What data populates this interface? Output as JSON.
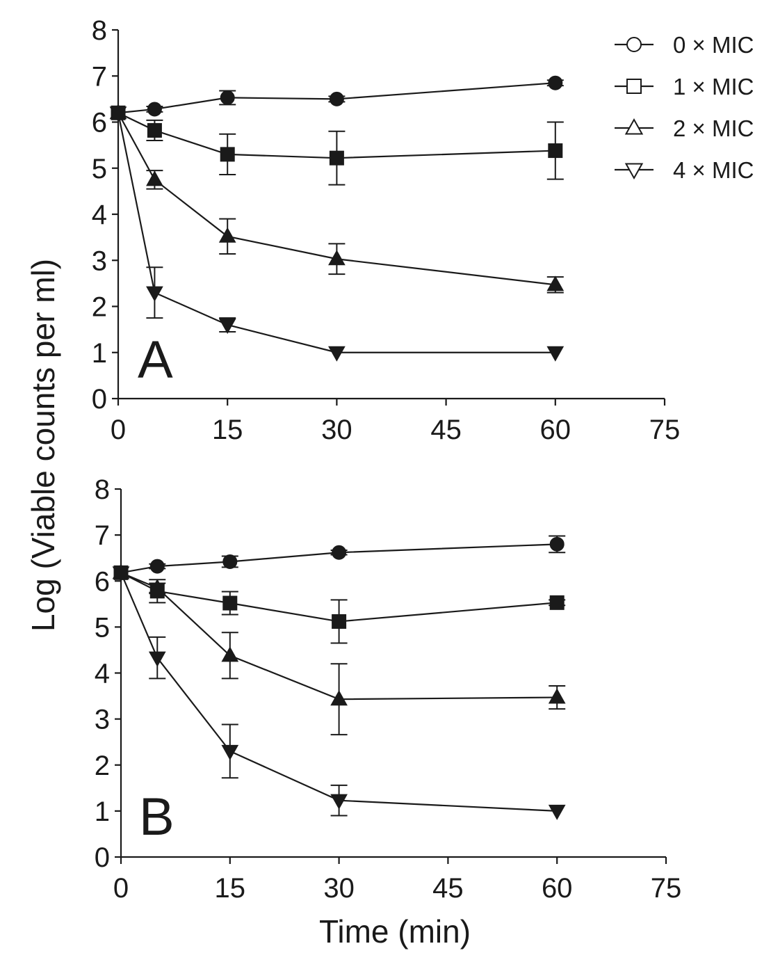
{
  "chart_data": [
    {
      "type": "line",
      "panel_label": "A",
      "x": [
        0,
        5,
        15,
        30,
        60
      ],
      "xlim": [
        0,
        75
      ],
      "xticks": [
        "0",
        "15",
        "30",
        "45",
        "60",
        "75"
      ],
      "ylim": [
        0,
        8
      ],
      "yticks": [
        "0",
        "1",
        "2",
        "3",
        "4",
        "5",
        "6",
        "7",
        "8"
      ],
      "xlabel": "",
      "ylabel": "Log (Viable counts per ml)",
      "series": [
        {
          "name": "0 × MIC",
          "marker": "circle",
          "values": [
            6.2,
            6.28,
            6.53,
            6.5,
            6.85
          ],
          "errors": [
            0,
            0.06,
            0.15,
            0.06,
            0.06
          ]
        },
        {
          "name": "1 × MIC",
          "marker": "square",
          "values": [
            6.2,
            5.82,
            5.3,
            5.22,
            5.38
          ],
          "errors": [
            0,
            0.22,
            0.44,
            0.58,
            0.62
          ]
        },
        {
          "name": "2 × MIC",
          "marker": "triangle-up",
          "values": [
            6.2,
            4.75,
            3.52,
            3.03,
            2.47
          ],
          "errors": [
            0,
            0.2,
            0.38,
            0.33,
            0.17
          ]
        },
        {
          "name": "4 × MIC",
          "marker": "triangle-down",
          "values": [
            6.2,
            2.3,
            1.6,
            1.0,
            1.0
          ],
          "errors": [
            0,
            0.55,
            0.15,
            0,
            0
          ]
        }
      ]
    },
    {
      "type": "line",
      "panel_label": "B",
      "x": [
        0,
        5,
        15,
        30,
        60
      ],
      "xlim": [
        0,
        75
      ],
      "xticks": [
        "0",
        "15",
        "30",
        "45",
        "60",
        "75"
      ],
      "ylim": [
        0,
        8
      ],
      "yticks": [
        "0",
        "1",
        "2",
        "3",
        "4",
        "5",
        "6",
        "7",
        "8"
      ],
      "xlabel": "Time (min)",
      "ylabel": "Log (Viable counts per ml)",
      "series": [
        {
          "name": "0 × MIC",
          "marker": "circle",
          "values": [
            6.18,
            6.32,
            6.42,
            6.62,
            6.8
          ],
          "errors": [
            0,
            0.05,
            0.12,
            0.05,
            0.18
          ]
        },
        {
          "name": "1 × MIC",
          "marker": "square",
          "values": [
            6.18,
            5.78,
            5.52,
            5.12,
            5.53
          ],
          "errors": [
            0,
            0.25,
            0.25,
            0.47,
            0.06
          ]
        },
        {
          "name": "2 × MIC",
          "marker": "triangle-up",
          "values": [
            6.18,
            5.85,
            4.38,
            3.43,
            3.47
          ],
          "errors": [
            0,
            0.1,
            0.5,
            0.77,
            0.25
          ]
        },
        {
          "name": "4 × MIC",
          "marker": "triangle-down",
          "values": [
            6.18,
            4.33,
            2.3,
            1.23,
            1.0
          ],
          "errors": [
            0,
            0.45,
            0.58,
            0.33,
            0
          ]
        }
      ]
    }
  ],
  "legend": {
    "placement": "top-right",
    "entries": [
      {
        "label": "0 × MIC",
        "marker": "circle"
      },
      {
        "label": "1 × MIC",
        "marker": "square"
      },
      {
        "label": "2 × MIC",
        "marker": "triangle-up"
      },
      {
        "label": "4 × MIC",
        "marker": "triangle-down"
      }
    ]
  }
}
